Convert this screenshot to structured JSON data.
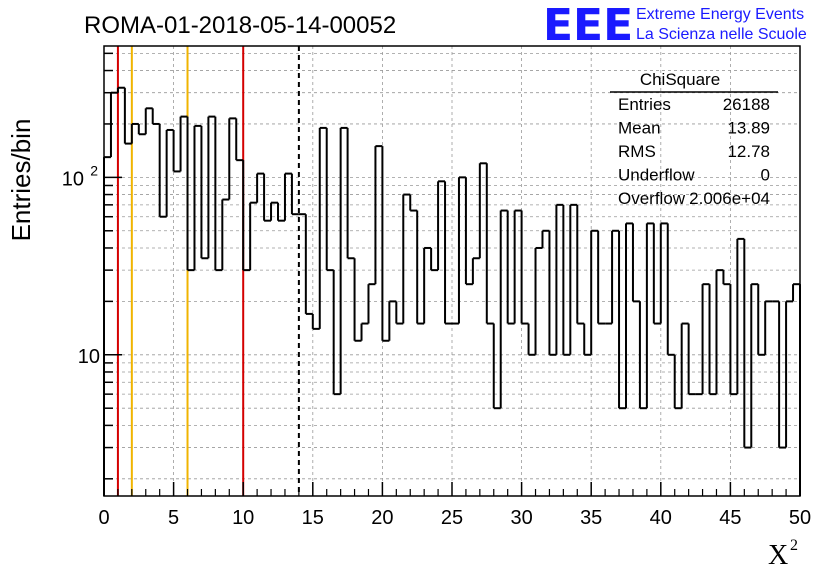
{
  "header": {
    "title": "ROMA-01-2018-05-14-00052"
  },
  "logo": {
    "mark": "EEE",
    "line1": "Extreme Energy Events",
    "line2": "La Scienza nelle Scuole",
    "color": "#1a1aff"
  },
  "stats_box": {
    "title": "ChiSquare",
    "rows": [
      {
        "label": "Entries",
        "value": "26188"
      },
      {
        "label": "Mean",
        "value": "13.89"
      },
      {
        "label": "RMS",
        "value": "12.78"
      },
      {
        "label": "Underflow",
        "value": "0"
      },
      {
        "label": "Overflow",
        "value": "2.006e+04"
      }
    ]
  },
  "chart_data": {
    "type": "bar",
    "histogram": true,
    "xlabel": "X",
    "xlabel_superscript": "2",
    "ylabel": "Entries/bin",
    "xlim": [
      0,
      50
    ],
    "ylim": [
      1.6,
      550
    ],
    "y_scale": "log",
    "grid": true,
    "legend": "none",
    "bin_width": 0.5,
    "values": [
      130,
      300,
      320,
      155,
      200,
      175,
      245,
      200,
      60,
      185,
      108,
      220,
      30,
      195,
      35,
      220,
      30,
      75,
      215,
      125,
      30,
      72,
      105,
      57,
      72,
      57,
      105,
      62,
      62,
      17,
      14,
      190,
      30,
      6,
      190,
      35,
      12,
      15,
      25,
      150,
      12,
      20,
      15,
      80,
      65,
      15,
      40,
      30,
      95,
      15,
      15,
      100,
      25,
      35,
      120,
      15,
      5,
      65,
      15,
      65,
      15,
      10,
      40,
      50,
      10,
      70,
      10,
      70,
      15,
      10,
      50,
      15,
      15,
      50,
      5,
      55,
      20,
      5,
      55,
      15,
      55,
      10,
      5,
      15,
      6,
      6,
      25,
      6,
      30,
      25,
      6,
      45,
      3,
      25,
      10,
      20,
      20,
      3,
      20,
      25
    ],
    "x_ticks": [
      0,
      5,
      10,
      15,
      20,
      25,
      30,
      35,
      40,
      45,
      50
    ],
    "y_tick_labels": [
      {
        "value": 10,
        "label": "10"
      },
      {
        "value": 100,
        "label": "10",
        "exponent": "2"
      }
    ],
    "vertical_lines": [
      {
        "x": 1,
        "color": "#d40000",
        "style": "solid"
      },
      {
        "x": 2,
        "color": "#f0b400",
        "style": "solid"
      },
      {
        "x": 6,
        "color": "#f0b400",
        "style": "solid"
      },
      {
        "x": 10,
        "color": "#d40000",
        "style": "solid"
      },
      {
        "x": 14,
        "color": "#000000",
        "style": "dashed"
      }
    ]
  }
}
